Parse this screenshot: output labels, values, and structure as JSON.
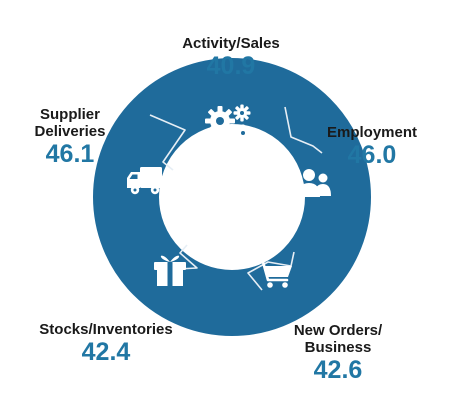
{
  "colors": {
    "ring": "#1f6b9b",
    "divider": "#e6eef5",
    "value": "#2177a4",
    "label": "#1a1a1a"
  },
  "segments": [
    {
      "name": "Activity/Sales",
      "value": "40.9",
      "icon": "gears-icon"
    },
    {
      "name": "Employment",
      "value": "46.0",
      "icon": "people-icon"
    },
    {
      "name": "New Orders/\nBusiness",
      "value": "42.6",
      "icon": "shopping-cart-icon"
    },
    {
      "name": "Stocks/Inventories",
      "value": "42.4",
      "icon": "gift-box-icon"
    },
    {
      "name": "Supplier\nDeliveries",
      "value": "46.1",
      "icon": "delivery-truck-icon"
    }
  ]
}
